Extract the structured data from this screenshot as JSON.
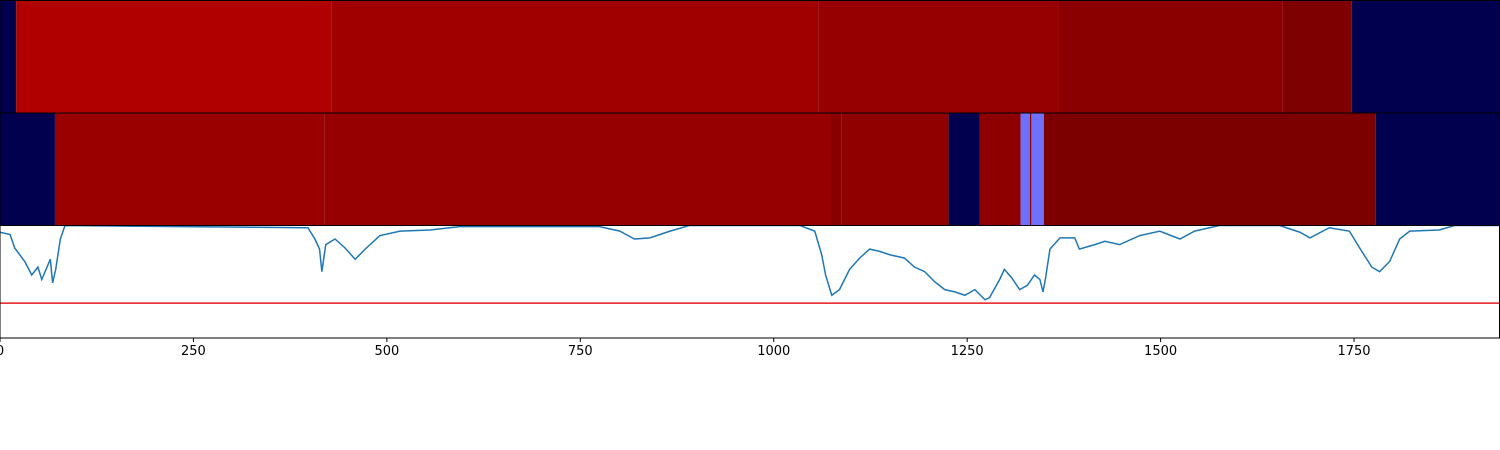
{
  "chart_data": [
    {
      "type": "bands",
      "xlim": [
        0,
        1938
      ],
      "segments": [
        {
          "start": 0,
          "end": 21,
          "color": "#00004f"
        },
        {
          "start": 21,
          "end": 428,
          "color": "#b00000"
        },
        {
          "start": 428,
          "end": 1058,
          "color": "#a10000"
        },
        {
          "start": 1058,
          "end": 1368,
          "color": "#960000"
        },
        {
          "start": 1368,
          "end": 1658,
          "color": "#8a0000"
        },
        {
          "start": 1658,
          "end": 1747,
          "color": "#7f0000"
        },
        {
          "start": 1747,
          "end": 1938,
          "color": "#00004f"
        }
      ]
    },
    {
      "type": "bands",
      "xlim": [
        0,
        1938
      ],
      "segments": [
        {
          "start": 0,
          "end": 71,
          "color": "#00004f"
        },
        {
          "start": 71,
          "end": 419,
          "color": "#9b0000"
        },
        {
          "start": 419,
          "end": 1074,
          "color": "#960000"
        },
        {
          "start": 1074,
          "end": 1088,
          "color": "#880000"
        },
        {
          "start": 1088,
          "end": 1226,
          "color": "#900000"
        },
        {
          "start": 1226,
          "end": 1266,
          "color": "#00004f"
        },
        {
          "start": 1266,
          "end": 1319,
          "color": "#8e0000"
        },
        {
          "start": 1319,
          "end": 1331,
          "color": "#7070ff"
        },
        {
          "start": 1331,
          "end": 1333,
          "color": "#8e0000"
        },
        {
          "start": 1333,
          "end": 1349,
          "color": "#7070ff"
        },
        {
          "start": 1349,
          "end": 1778,
          "color": "#7d0000"
        },
        {
          "start": 1778,
          "end": 1938,
          "color": "#00004f"
        }
      ]
    },
    {
      "type": "line",
      "xlim": [
        0,
        1938
      ],
      "ylim": [
        0,
        1
      ],
      "xticks": [
        0,
        250,
        500,
        750,
        1000,
        1250,
        1500,
        1750
      ],
      "threshold": {
        "value": 0.31,
        "color": "#e31a1c"
      },
      "x": [
        0,
        13,
        19,
        32,
        41,
        49,
        54,
        65,
        68,
        72,
        78,
        84,
        398,
        407,
        413,
        416,
        421,
        433,
        446,
        459,
        472,
        491,
        517,
        556,
        594,
        775,
        801,
        820,
        840,
        866,
        891,
        1034,
        1053,
        1062,
        1067,
        1075,
        1085,
        1098,
        1111,
        1124,
        1137,
        1150,
        1169,
        1182,
        1195,
        1208,
        1221,
        1234,
        1247,
        1260,
        1273,
        1279,
        1292,
        1298,
        1307,
        1318,
        1328,
        1337,
        1344,
        1348,
        1351,
        1357,
        1370,
        1389,
        1395,
        1415,
        1428,
        1447,
        1473,
        1499,
        1525,
        1544,
        1576,
        1654,
        1680,
        1693,
        1718,
        1744,
        1760,
        1773,
        1783,
        1796,
        1809,
        1822,
        1860,
        1880,
        1938
      ],
      "series": [
        {
          "color": "#1f77b4",
          "values": [
            0.94,
            0.92,
            0.8,
            0.68,
            0.56,
            0.63,
            0.52,
            0.7,
            0.49,
            0.61,
            0.88,
            1.0,
            0.98,
            0.88,
            0.79,
            0.59,
            0.83,
            0.88,
            0.8,
            0.7,
            0.79,
            0.91,
            0.95,
            0.96,
            0.99,
            0.99,
            0.95,
            0.88,
            0.89,
            0.95,
            1.0,
            1.0,
            0.95,
            0.74,
            0.56,
            0.38,
            0.43,
            0.61,
            0.71,
            0.79,
            0.77,
            0.74,
            0.71,
            0.63,
            0.59,
            0.5,
            0.43,
            0.41,
            0.38,
            0.43,
            0.34,
            0.36,
            0.52,
            0.61,
            0.54,
            0.43,
            0.47,
            0.56,
            0.52,
            0.41,
            0.52,
            0.79,
            0.89,
            0.89,
            0.79,
            0.83,
            0.86,
            0.83,
            0.91,
            0.95,
            0.88,
            0.95,
            1.0,
            1.0,
            0.94,
            0.89,
            0.98,
            0.95,
            0.77,
            0.63,
            0.59,
            0.68,
            0.88,
            0.95,
            0.96,
            1.0,
            1.0
          ]
        }
      ]
    }
  ]
}
